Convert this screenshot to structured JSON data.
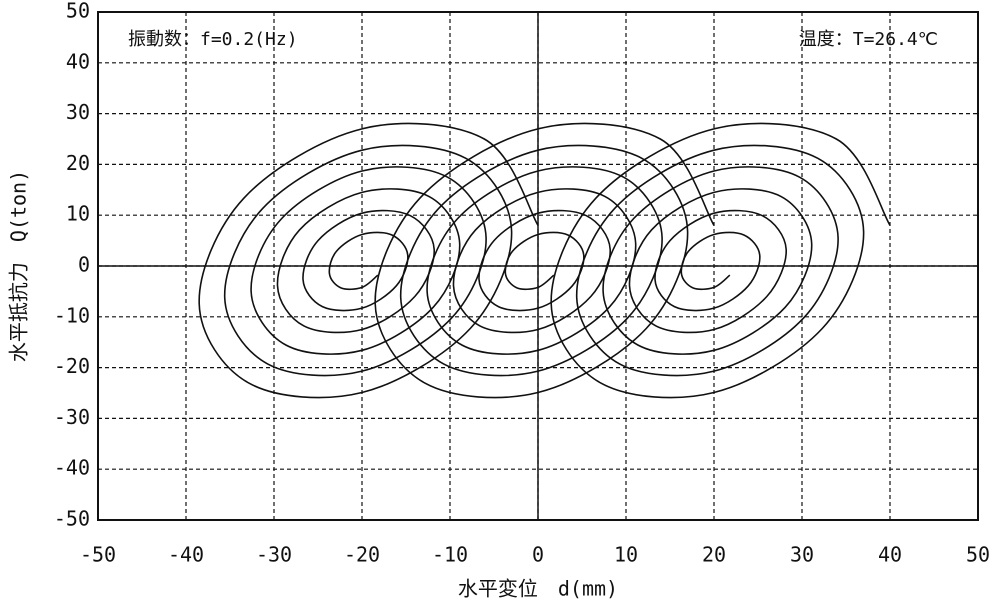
{
  "chart_data": {
    "type": "line",
    "xlabel": "水平変位　d(mm)",
    "ylabel": "水平抵抗力　Q(ton)",
    "annotations": [
      "振動数：f=0.2(Hz)",
      "温度：T=26.4℃"
    ],
    "xlim": [
      -50,
      50
    ],
    "ylim": [
      -50,
      50
    ],
    "xticks": [
      -50,
      -40,
      -30,
      -20,
      -10,
      0,
      10,
      20,
      30,
      40,
      50
    ],
    "yticks": [
      -50,
      -40,
      -30,
      -20,
      -10,
      0,
      10,
      20,
      30,
      40,
      50
    ],
    "grid": true,
    "series": [
      {
        "color": "#111111",
        "x": [
          0,
          -6.1,
          -20,
          -33.4,
          -38.5,
          -32.8,
          -20,
          -7.7,
          -3,
          -8.2,
          -20,
          -31.3,
          -35.6,
          -30.7,
          -20,
          -9.8,
          -5.9,
          -10.3,
          -20,
          -29.2,
          -32.6,
          -28.6,
          -20,
          -11.9,
          -8.9,
          -12.4,
          -20,
          -27.1,
          -29.6,
          -26.6,
          -20,
          -14,
          -11.8,
          -14.5,
          -20,
          -25,
          -26.7,
          -24.5,
          -20,
          -16.1,
          -14.8,
          -16.6,
          -20,
          -22.9,
          -23.7,
          -22.4,
          -20,
          -18.2
        ],
        "values": [
          8,
          25.0,
          27.0,
          13.4,
          -7.4,
          -23.1,
          -24.9,
          -12.3,
          6.8,
          21.2,
          22.8,
          11.3,
          -6.2,
          -19.3,
          -20.7,
          -10.2,
          5.6,
          17.5,
          18.7,
          9.2,
          -5.0,
          -15.6,
          -16.6,
          -8.1,
          4.4,
          13.7,
          14.5,
          7.1,
          -3.9,
          -11.8,
          -12.5,
          -6.0,
          3.3,
          9.9,
          10.4,
          5.0,
          -2.7,
          -8.0,
          -8.3,
          -3.9,
          2.1,
          6.1,
          6.2,
          2.9,
          -1.5,
          -4.3,
          -4.2,
          -1.8
        ]
      },
      {
        "color": "#111111",
        "x": [
          20,
          13.9,
          0,
          -13.4,
          -18.5,
          -12.8,
          0,
          12.3,
          17.0,
          11.8,
          0,
          -11.3,
          -15.6,
          -10.7,
          0,
          10.2,
          14.1,
          9.7,
          0,
          -9.2,
          -12.6,
          -8.6,
          0,
          8.1,
          11.1,
          7.6,
          0,
          -7.1,
          -9.6,
          -6.6,
          0,
          6.0,
          8.2,
          5.5,
          0,
          -5.0,
          -6.7,
          -4.5,
          0,
          3.9,
          5.2,
          3.4,
          0,
          -2.9,
          -3.7,
          -2.4,
          0,
          1.8
        ],
        "values": [
          8,
          25.0,
          27.0,
          13.4,
          -7.4,
          -23.1,
          -24.9,
          -12.3,
          6.8,
          21.2,
          22.8,
          11.3,
          -6.2,
          -19.3,
          -20.7,
          -10.2,
          5.6,
          17.5,
          18.7,
          9.2,
          -5.0,
          -15.6,
          -16.6,
          -8.1,
          4.4,
          13.7,
          14.5,
          7.1,
          -3.9,
          -11.8,
          -12.5,
          -6.0,
          3.3,
          9.9,
          10.4,
          5.0,
          -2.7,
          -8.0,
          -8.3,
          -3.9,
          2.1,
          6.1,
          6.2,
          2.9,
          -1.5,
          -4.3,
          -4.2,
          -1.8
        ]
      },
      {
        "color": "#111111",
        "x": [
          40,
          33.9,
          20,
          6.6,
          1.5,
          7.2,
          20,
          32.3,
          37.0,
          31.8,
          20,
          8.7,
          4.4,
          9.3,
          20,
          30.2,
          34.1,
          29.7,
          20,
          10.8,
          7.4,
          11.4,
          20,
          28.1,
          31.1,
          27.6,
          20,
          12.9,
          10.4,
          13.4,
          20,
          26.0,
          28.2,
          25.5,
          20,
          15.0,
          13.3,
          15.5,
          20,
          23.9,
          25.2,
          23.4,
          20,
          17.1,
          16.3,
          17.6,
          20,
          21.8
        ],
        "values": [
          8,
          25.0,
          27.0,
          13.4,
          -7.4,
          -23.1,
          -24.9,
          -12.3,
          6.8,
          21.2,
          22.8,
          11.3,
          -6.2,
          -19.3,
          -20.7,
          -10.2,
          5.6,
          17.5,
          18.7,
          9.2,
          -5.0,
          -15.6,
          -16.6,
          -8.1,
          4.4,
          13.7,
          14.5,
          7.1,
          -3.9,
          -11.8,
          -12.5,
          -6.0,
          3.3,
          9.9,
          10.4,
          5.0,
          -2.7,
          -8.0,
          -8.3,
          -3.9,
          2.1,
          6.1,
          6.2,
          2.9,
          -1.5,
          -4.3,
          -4.2,
          -1.8
        ]
      }
    ]
  }
}
